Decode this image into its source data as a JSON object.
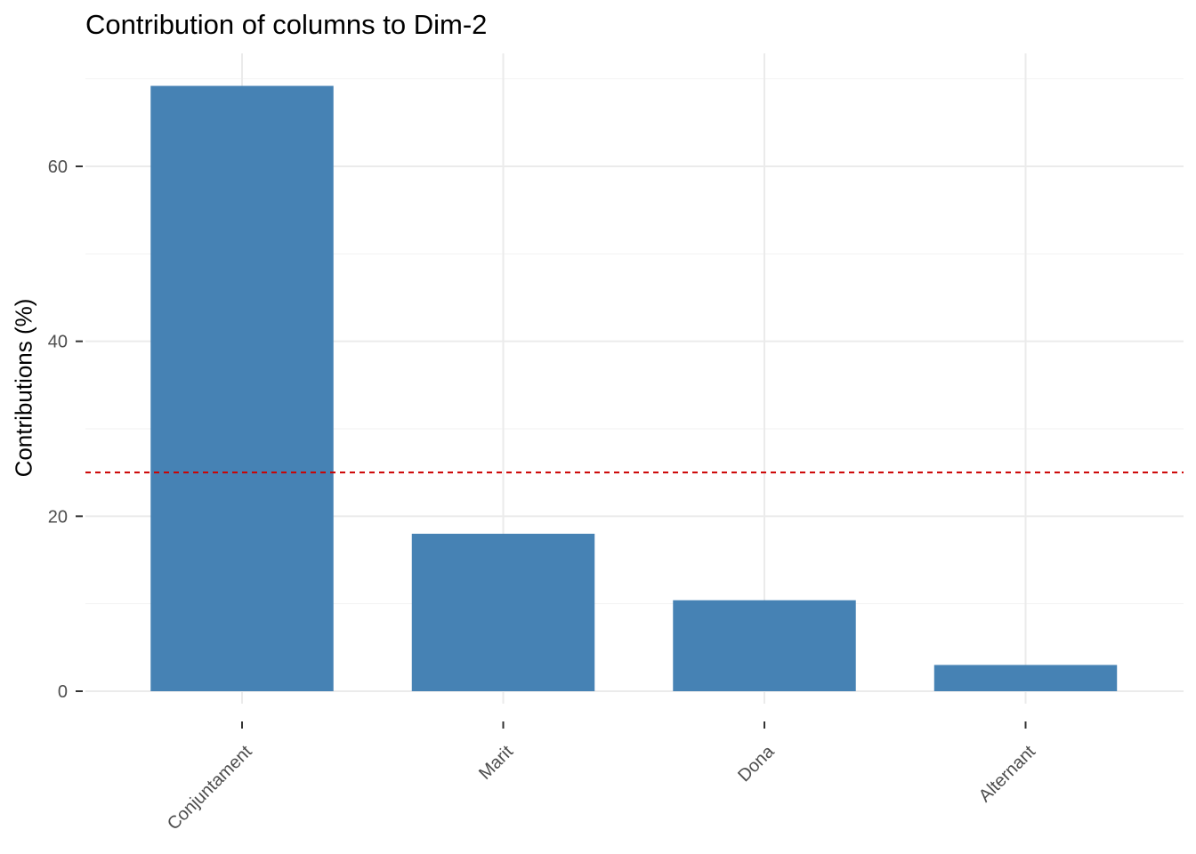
{
  "chart_data": {
    "type": "bar",
    "title": "Contribution of columns to Dim-2",
    "xlabel": "",
    "ylabel": "Contributions (%)",
    "categories": [
      "Conjuntament",
      "Marit",
      "Dona",
      "Alternant"
    ],
    "values": [
      69.2,
      18.0,
      10.4,
      3.0
    ],
    "ylim": [
      0,
      70
    ],
    "yticks": [
      0,
      20,
      40,
      60
    ],
    "reference_line": {
      "value": 25,
      "style": "dashed",
      "color": "#cc0000"
    },
    "bar_color": "#4682b4",
    "grid": true,
    "legend": "none"
  }
}
